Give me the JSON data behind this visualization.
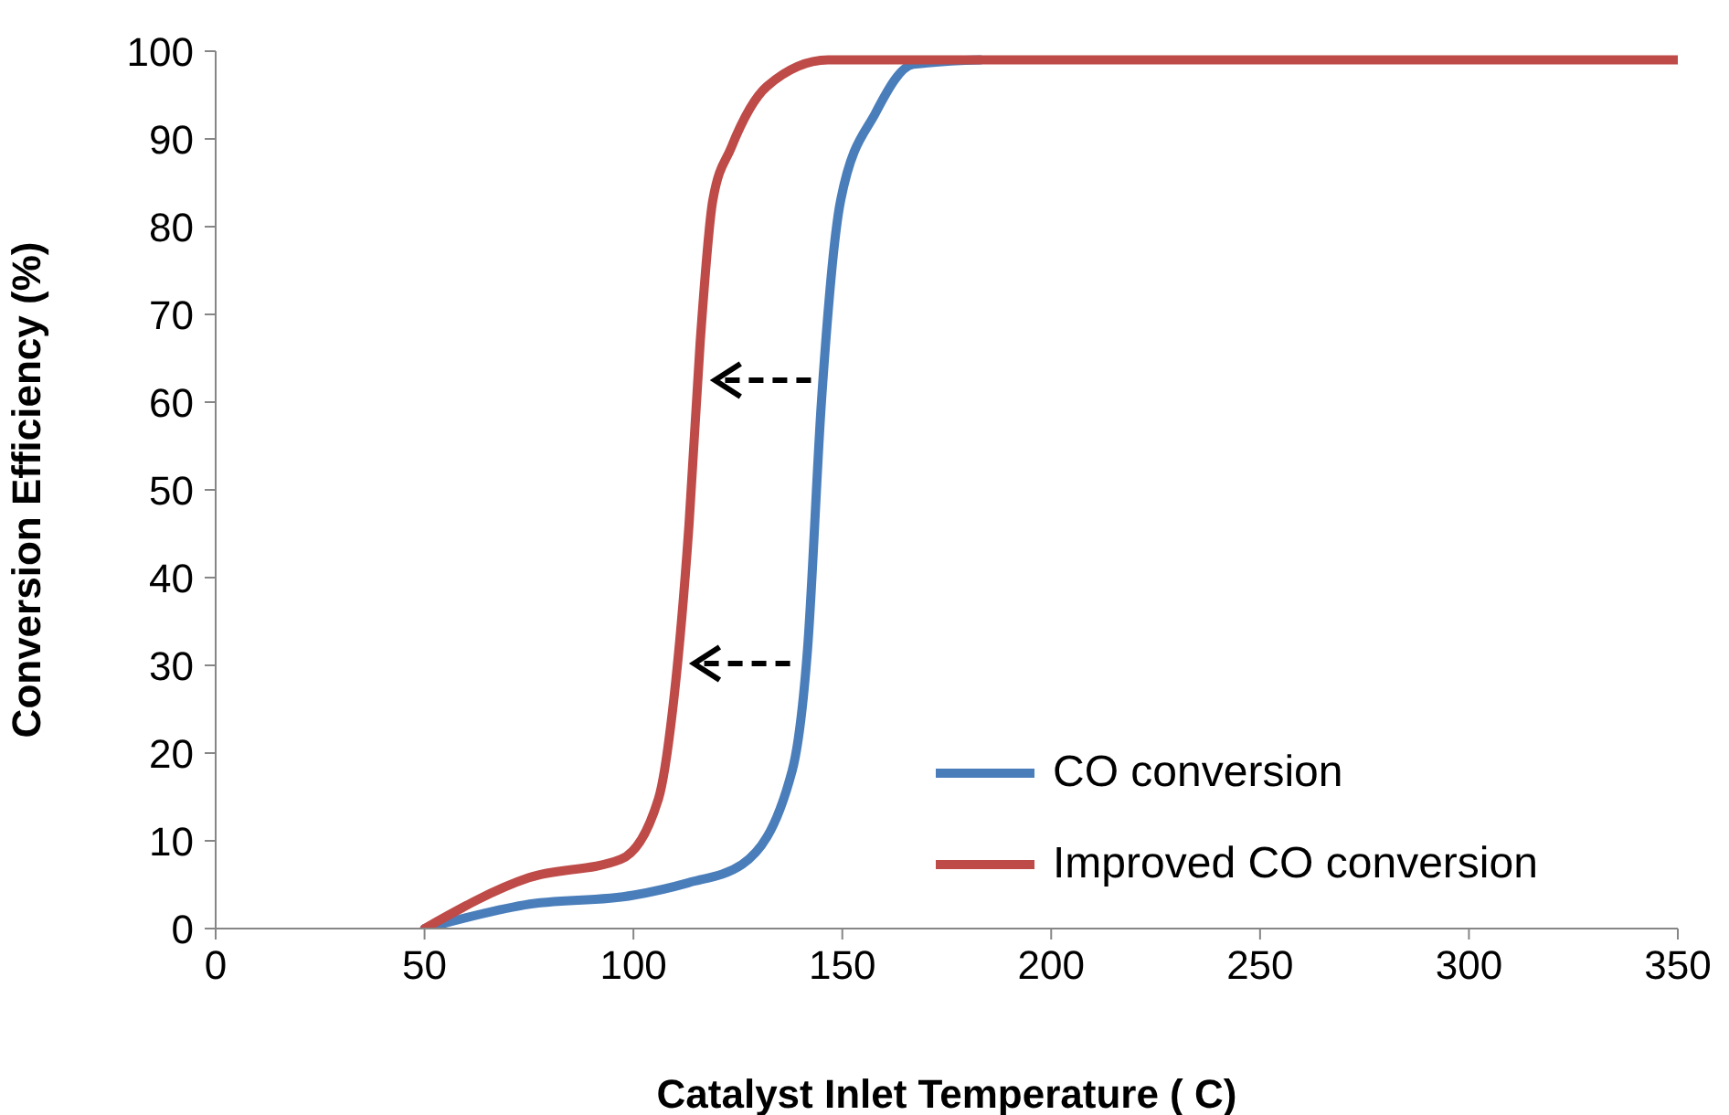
{
  "chart_data": {
    "type": "line",
    "xlabel": "Catalyst Inlet Temperature ( C)",
    "ylabel": "Conversion Efficiency (%)",
    "xlim": [
      0,
      350
    ],
    "xticks": [
      0,
      50,
      100,
      150,
      200,
      250,
      300,
      350
    ],
    "ylim": [
      0,
      100
    ],
    "yticks": [
      0,
      10,
      20,
      30,
      40,
      50,
      60,
      70,
      80,
      90,
      100
    ],
    "grid": false,
    "legend": "bottom right",
    "marker": "none",
    "line_style": "solid",
    "series": [
      {
        "name": "CO conversion",
        "color": "#4a7ebb",
        "x": [
          50,
          74,
          100,
          113,
          126,
          138,
          141.7,
          145,
          149.6,
          158,
          167,
          183
        ],
        "values": [
          0,
          2.7,
          3.8,
          5.2,
          7.3,
          18,
          32,
          60,
          83,
          93,
          98.5,
          99
        ]
      },
      {
        "name": "Improved CO conversion",
        "color": "#be4b48",
        "x": [
          50,
          75,
          97,
          106,
          109.4,
          113.3,
          116,
          119,
          123.4,
          132,
          146.6,
          155,
          350
        ],
        "values": [
          0,
          5.8,
          7.9,
          14.8,
          25,
          46,
          67,
          83,
          89,
          96,
          99,
          99,
          99
        ]
      }
    ]
  }
}
